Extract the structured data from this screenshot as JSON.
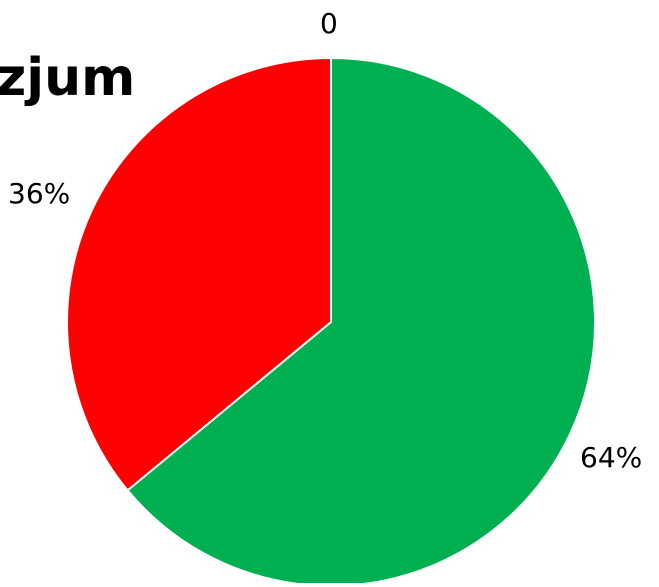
{
  "title_fragment": "zjum",
  "colors": {
    "red_slice": "#ff0000",
    "green_slice": "#00b050",
    "border": "#ffffff"
  },
  "chart_data": {
    "type": "pie",
    "title": "zjum",
    "categories": [
      "",
      "",
      ""
    ],
    "values": [
      0,
      36,
      64
    ],
    "data_labels": [
      "0",
      "36%",
      "64%"
    ],
    "colors": [
      "#00b050",
      "#ff0000",
      "#00b050"
    ],
    "start_angle_deg": 0,
    "direction": "counterclockwise-from-top",
    "legend": "none"
  }
}
